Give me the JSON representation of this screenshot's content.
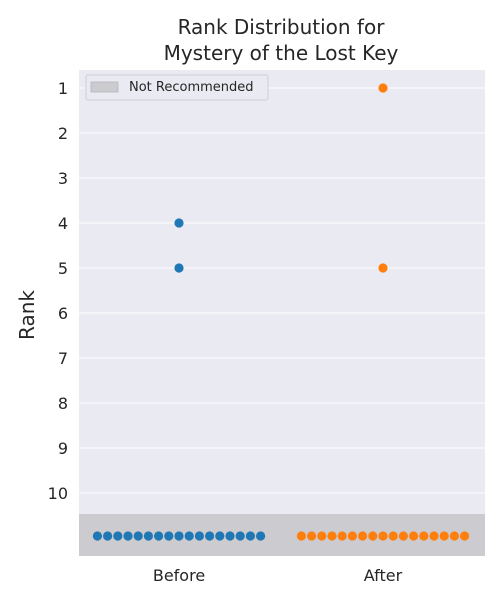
{
  "chart_data": {
    "type": "scatter",
    "title_lines": [
      "Rank Distribution for",
      "Mystery of the Lost Key"
    ],
    "ylabel": "Rank",
    "xlabel": "",
    "categories": [
      "Before",
      "After"
    ],
    "y_ticks": [
      "1",
      "2",
      "3",
      "4",
      "5",
      "6",
      "7",
      "8",
      "9",
      "10"
    ],
    "ylim": [
      1,
      10
    ],
    "y_inverted": true,
    "grid": true,
    "legend": {
      "placement": "top-left",
      "entries": [
        "Not Recommended"
      ]
    },
    "not_recommended_band": {
      "label": "Not Recommended",
      "color": "#cbcbd0"
    },
    "series": [
      {
        "category": "Before",
        "color": "#1f77b4",
        "ranks": [
          4,
          5
        ],
        "not_recommended_count": 17
      },
      {
        "category": "After",
        "color": "#ff7f0e",
        "ranks": [
          1,
          5
        ],
        "not_recommended_count": 17
      }
    ],
    "colors": {
      "plot_background": "#eaeaf2",
      "grid": "#ffffff"
    }
  }
}
